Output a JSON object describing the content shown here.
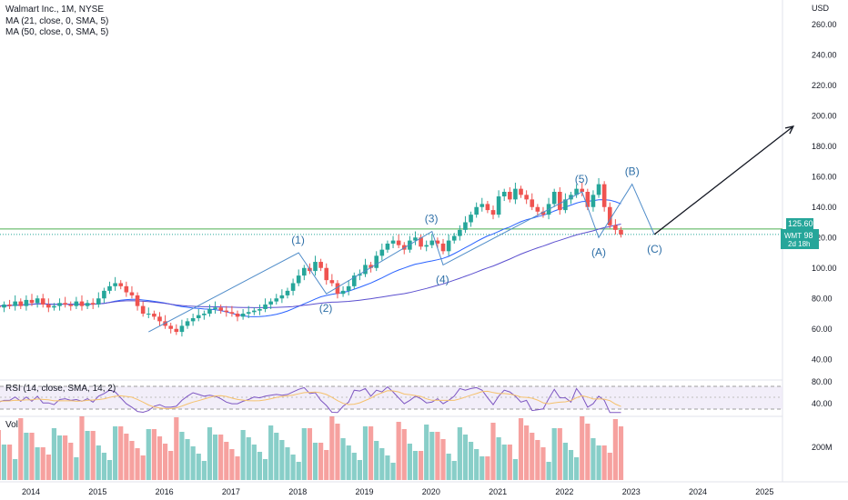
{
  "legend": {
    "title": "Walmart Inc., 1M, NYSE",
    "ma21": "MA (21, close, 0, SMA, 5)",
    "ma50": "MA (50, close, 0, SMA, 5)",
    "rsi": "RSI (14, close, SMA, 14, 2)",
    "vol": "Vol"
  },
  "price_axis": {
    "currency": "USD",
    "ticks": [
      "260.00",
      "240.00",
      "220.00",
      "200.00",
      "180.00",
      "160.00",
      "140.00",
      "120.00",
      "100.00",
      "80.00",
      "60.00",
      "40.00"
    ],
    "current_badge": {
      "symbol": "WMT",
      "price": "121.98",
      "countdown": "2d 18h"
    },
    "resistance_badge": "125.60"
  },
  "rsi_axis": {
    "ticks": [
      "80.00",
      "40.00"
    ]
  },
  "vol_axis": {
    "ticks": [
      "200M"
    ]
  },
  "time_axis": {
    "ticks": [
      "2014",
      "2015",
      "2016",
      "2017",
      "2018",
      "2019",
      "2020",
      "2021",
      "2022",
      "2023",
      "2024",
      "2025"
    ]
  },
  "wave_labels": [
    "(1)",
    "(2)",
    "(3)",
    "(4)",
    "(5)",
    "(A)",
    "(B)",
    "(C)"
  ],
  "colors": {
    "up": "#26a69a",
    "down": "#ef5350",
    "ma21": "#2962ff",
    "ma50": "#5b4fcf",
    "wave": "#4f8cc9",
    "resistance": "#4caf50",
    "rsi": "#7e57c2",
    "rsi_ma": "#f5c16c",
    "badge_green": "#26a69a"
  },
  "chart_data": {
    "type": "candlestick",
    "interval": "1M",
    "start": "2013-05",
    "ohlc_closes": [
      76,
      75,
      74,
      76,
      75,
      78,
      75,
      79,
      77,
      80,
      76,
      74,
      75,
      77,
      76,
      75,
      78,
      75,
      77,
      76,
      80,
      85,
      88,
      90,
      88,
      84,
      82,
      75,
      70,
      70,
      68,
      65,
      62,
      60,
      58,
      62,
      65,
      67,
      69,
      70,
      73,
      74,
      72,
      71,
      70,
      68,
      70,
      71,
      72,
      73,
      76,
      78,
      80,
      82,
      85,
      90,
      95,
      100,
      98,
      104,
      100,
      92,
      90,
      83,
      85,
      88,
      95,
      96,
      102,
      100,
      108,
      112,
      116,
      118,
      115,
      112,
      118,
      120,
      114,
      115,
      118,
      116,
      111,
      118,
      121,
      125,
      130,
      135,
      140,
      142,
      138,
      135,
      147,
      150,
      145,
      152,
      148,
      145,
      140,
      137,
      135,
      142,
      150,
      138,
      145,
      148,
      152,
      150,
      140,
      148,
      155,
      140,
      128,
      125,
      121.98
    ],
    "ma21_end": 140,
    "ma50_end": 122,
    "resistance": 125.6,
    "current_price": 121.98,
    "elliott_waves": [
      {
        "label": "(1)",
        "date": "2018-01",
        "price": 110
      },
      {
        "label": "(2)",
        "date": "2018-06",
        "price": 83
      },
      {
        "label": "(3)",
        "date": "2020-01",
        "price": 124
      },
      {
        "label": "(4)",
        "date": "2020-03",
        "price": 102
      },
      {
        "label": "(5)",
        "date": "2022-04",
        "price": 150
      },
      {
        "label": "(A)",
        "date": "2022-07",
        "price": 120
      },
      {
        "label": "(B)",
        "date": "2023-01",
        "price": 155
      },
      {
        "label": "(C)",
        "date": "2023-05",
        "price": 122
      }
    ],
    "projection": {
      "from": {
        "date": "2023-05",
        "price": 122
      },
      "to": {
        "date": "2025-06",
        "price": 193
      }
    },
    "price_range": [
      30,
      270
    ],
    "rsi_range": [
      30,
      90
    ],
    "rsi_upper": 70,
    "rsi_lower": 30
  }
}
